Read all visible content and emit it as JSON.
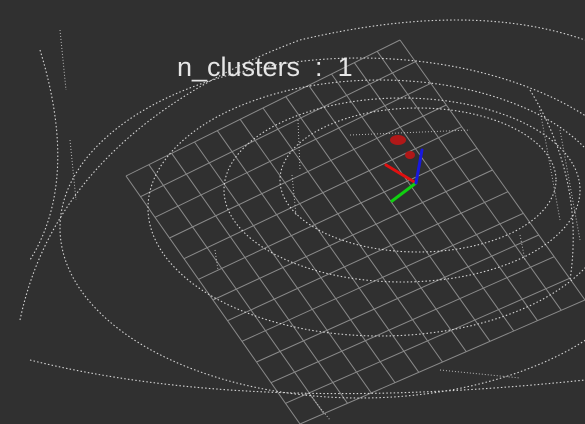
{
  "viewer": {
    "background_color": "#303030",
    "grid_color": "#9a9a9a",
    "point_color": "#e8e8e8",
    "cluster_color": "#b01818"
  },
  "overlay": {
    "text": "n_clusters  :  1",
    "color": "#e6e6e6"
  },
  "axes": {
    "x_color": "#e01010",
    "y_color": "#10d010",
    "z_color": "#1818e0"
  }
}
